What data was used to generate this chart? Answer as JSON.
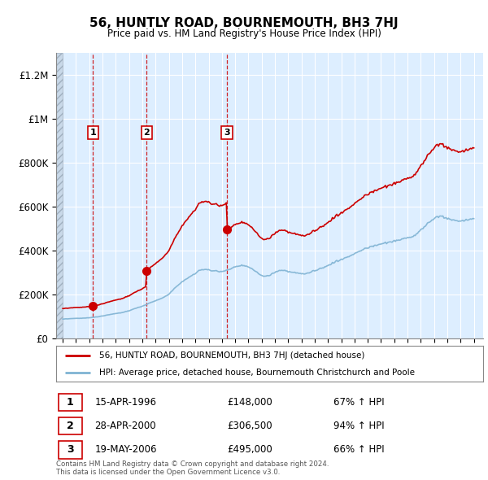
{
  "title": "56, HUNTLY ROAD, BOURNEMOUTH, BH3 7HJ",
  "subtitle": "Price paid vs. HM Land Registry's House Price Index (HPI)",
  "transactions": [
    {
      "date": 1996.29,
      "price": 148000,
      "label": "1"
    },
    {
      "date": 2000.33,
      "price": 306500,
      "label": "2"
    },
    {
      "date": 2006.38,
      "price": 495000,
      "label": "3"
    }
  ],
  "transaction_labels_info": [
    {
      "num": "1",
      "date": "15-APR-1996",
      "price": "£148,000",
      "pct": "67% ↑ HPI"
    },
    {
      "num": "2",
      "date": "28-APR-2000",
      "price": "£306,500",
      "pct": "94% ↑ HPI"
    },
    {
      "num": "3",
      "date": "19-MAY-2006",
      "price": "£495,000",
      "pct": "66% ↑ HPI"
    }
  ],
  "legend_line1": "56, HUNTLY ROAD, BOURNEMOUTH, BH3 7HJ (detached house)",
  "legend_line2": "HPI: Average price, detached house, Bournemouth Christchurch and Poole",
  "footer": "Contains HM Land Registry data © Crown copyright and database right 2024.\nThis data is licensed under the Open Government Licence v3.0.",
  "price_line_color": "#cc0000",
  "hpi_line_color": "#7fb3d3",
  "vline_color": "#cc0000",
  "ylim": [
    0,
    1300000
  ],
  "xlim": [
    1993.5,
    2025.7
  ],
  "background_color": "#ffffff",
  "chart_bg_color": "#ddeeff",
  "grid_color": "#ffffff",
  "hatch_end": 1994.0
}
